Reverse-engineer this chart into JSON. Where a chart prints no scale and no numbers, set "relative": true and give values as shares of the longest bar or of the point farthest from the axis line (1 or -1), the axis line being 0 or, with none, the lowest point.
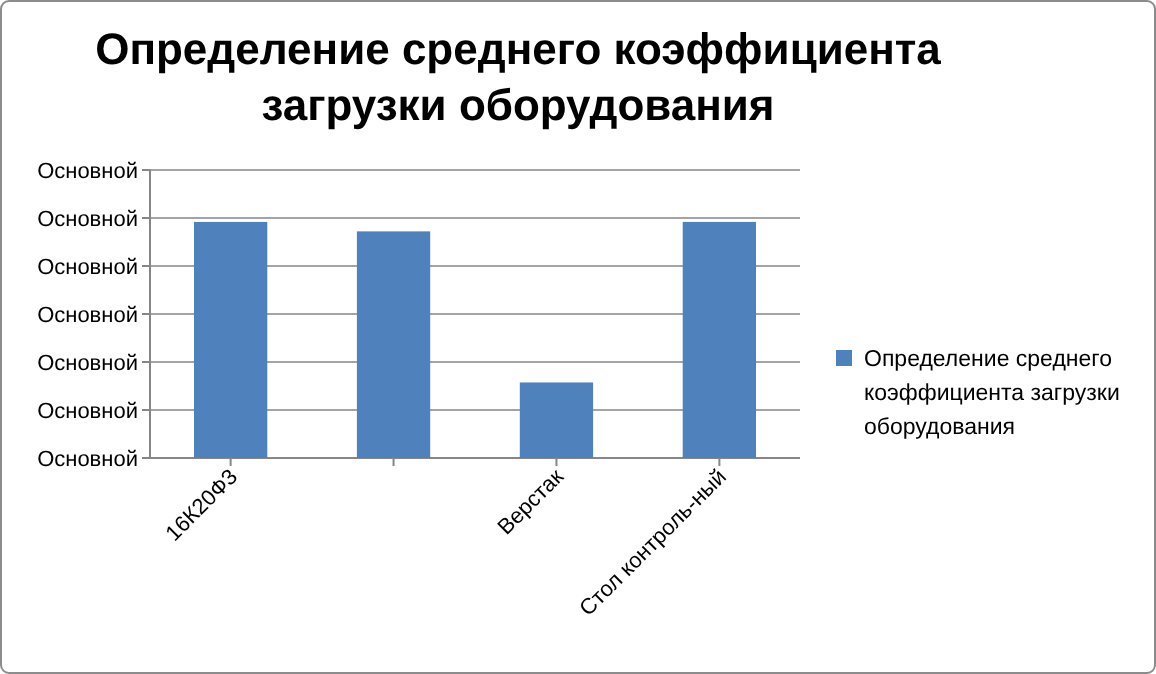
{
  "chart_data": {
    "type": "bar",
    "title": "Определение среднего коэффициента загрузки оборудования",
    "categories": [
      "16К20Ф3",
      null,
      "Верстак",
      "Стол контроль-ный"
    ],
    "series": [
      {
        "name": "Определение среднего коэффициента загрузки оборудования",
        "color": "#4f81bd",
        "values": [
          1,
          0.96,
          0.32,
          1
        ]
      }
    ],
    "relative": true,
    "annotations": [
      "Основной",
      "Основной",
      "Основной",
      "Основной",
      "Основной",
      "Основной",
      "Основной"
    ],
    "grid": "y",
    "legend": "right"
  }
}
